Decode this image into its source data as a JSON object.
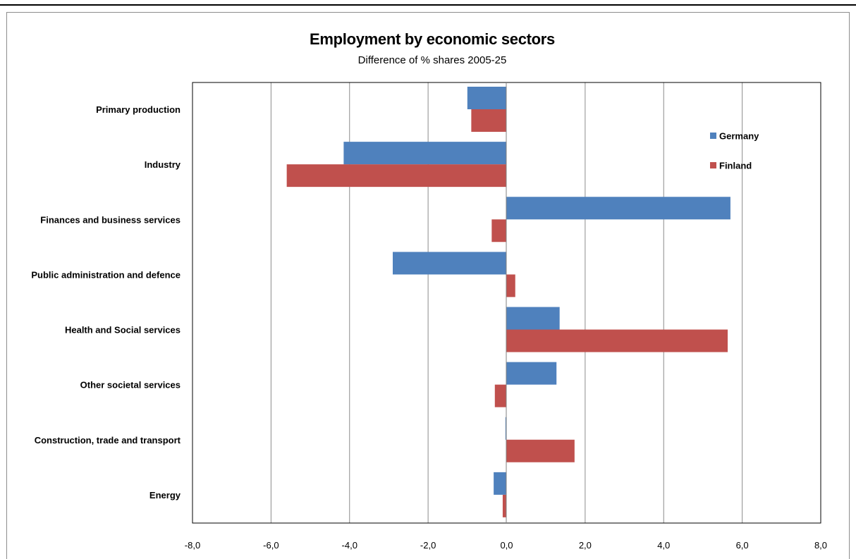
{
  "chart_data": {
    "type": "bar",
    "orientation": "horizontal",
    "title": "Employment by economic sectors",
    "subtitle": "Difference of % shares 2005-25",
    "categories": [
      "Primary production",
      "Industry",
      "Finances and business services",
      "Public administration and defence",
      "Health and Social services",
      "Other societal services",
      "Construction, trade and transport",
      "Energy"
    ],
    "series": [
      {
        "name": "Germany",
        "color": "#4f81bd",
        "values": [
          -1.0,
          -4.15,
          5.7,
          -2.9,
          1.35,
          1.27,
          -0.03,
          -0.33
        ]
      },
      {
        "name": "Finland",
        "color": "#c0504d",
        "values": [
          -0.9,
          -5.6,
          -0.38,
          0.22,
          5.63,
          -0.3,
          1.73,
          -0.1
        ]
      }
    ],
    "xlim": [
      -8,
      8
    ],
    "xticks": [
      -8,
      -6,
      -4,
      -2,
      0,
      2,
      4,
      6,
      8
    ],
    "xtick_labels": [
      "-8,0",
      "-6,0",
      "-4,0",
      "-2,0",
      "0,0",
      "2,0",
      "4,0",
      "6,0",
      "8,0"
    ],
    "grid": "vertical",
    "legend_position": "right"
  }
}
